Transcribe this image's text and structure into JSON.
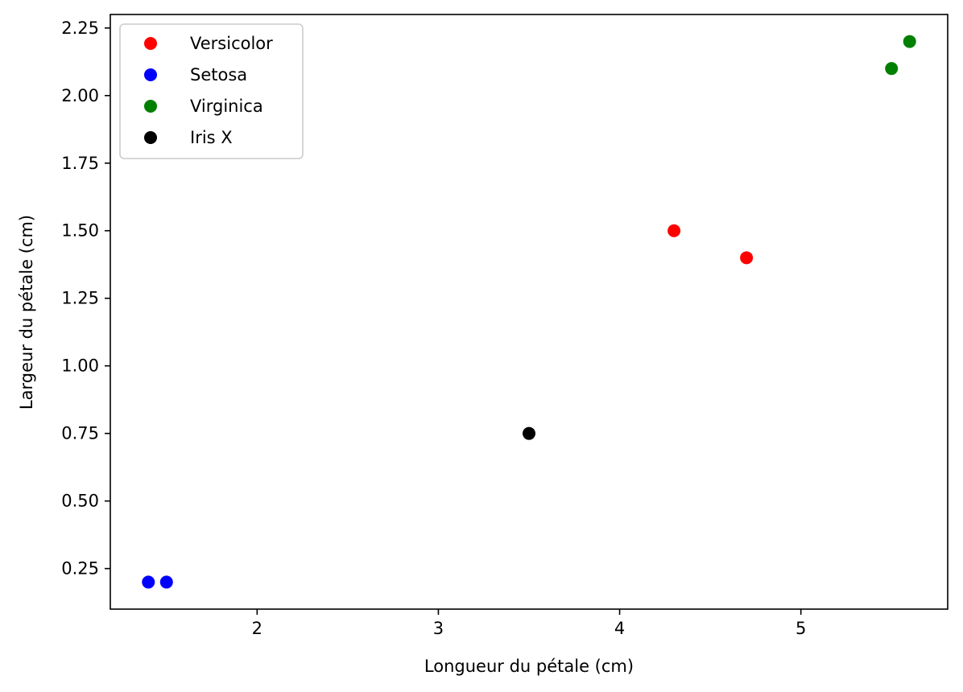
{
  "chart_data": {
    "type": "scatter",
    "title": "",
    "xlabel": "Longueur du pétale (cm)",
    "ylabel": "Largeur du pétale (cm)",
    "xlim": [
      1.19,
      5.81
    ],
    "ylim": [
      0.1,
      2.3
    ],
    "xticks": [
      2,
      3,
      4,
      5
    ],
    "xtick_labels": [
      "2",
      "3",
      "4",
      "5"
    ],
    "yticks": [
      0.25,
      0.5,
      0.75,
      1.0,
      1.25,
      1.5,
      1.75,
      2.0,
      2.25
    ],
    "ytick_labels": [
      "0.25",
      "0.50",
      "0.75",
      "1.00",
      "1.25",
      "1.50",
      "1.75",
      "2.00",
      "2.25"
    ],
    "grid": false,
    "legend_position": "top-left",
    "series": [
      {
        "name": "Versicolor",
        "color": "#ff0000",
        "points": [
          [
            4.3,
            1.5
          ],
          [
            4.7,
            1.4
          ]
        ]
      },
      {
        "name": "Setosa",
        "color": "#0000ff",
        "points": [
          [
            1.4,
            0.2
          ],
          [
            1.5,
            0.2
          ]
        ]
      },
      {
        "name": "Virginica",
        "color": "#008000",
        "points": [
          [
            5.5,
            2.1
          ],
          [
            5.6,
            2.2
          ]
        ]
      },
      {
        "name": "Iris X",
        "color": "#000000",
        "points": [
          [
            3.5,
            0.75
          ]
        ]
      }
    ]
  }
}
